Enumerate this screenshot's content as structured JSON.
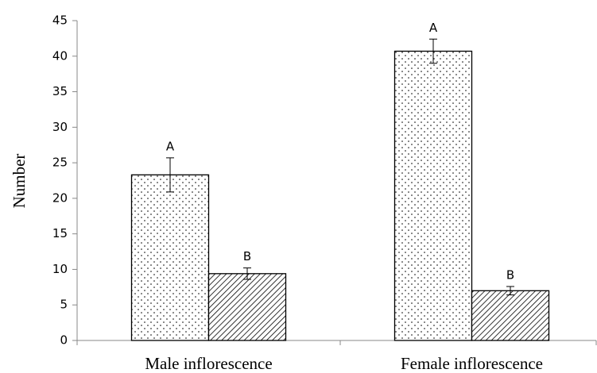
{
  "chart_data": {
    "type": "bar",
    "y_label": "Number",
    "categories": [
      "Male inflorescence",
      "Female inflorescence"
    ],
    "series": [
      {
        "color": "#000000",
        "pattern": "dots",
        "values": [
          23.3,
          40.7
        ],
        "errors": [
          2.4,
          1.7
        ],
        "letters": [
          "A",
          "A"
        ]
      },
      {
        "color": "#000000",
        "pattern": "hatch",
        "values": [
          9.4,
          7.0
        ],
        "errors": [
          0.8,
          0.6
        ],
        "letters": [
          "B",
          "B"
        ]
      }
    ],
    "ylim": [
      0,
      45
    ],
    "yticks": [
      0,
      5,
      10,
      15,
      20,
      25,
      30,
      35,
      40,
      45
    ],
    "grid": false
  }
}
